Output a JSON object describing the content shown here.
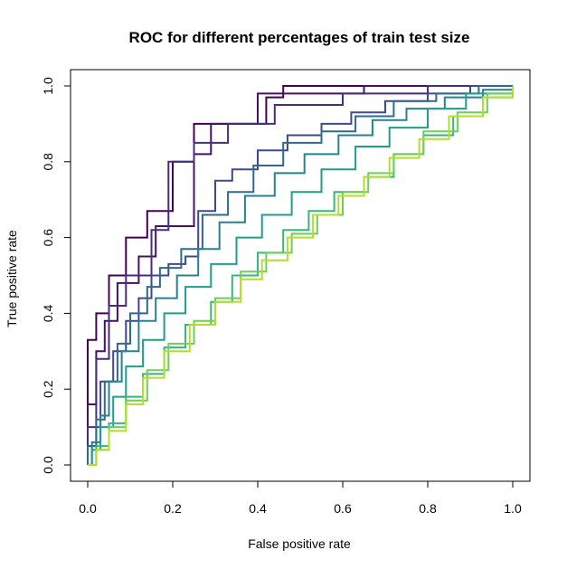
{
  "chart_data": {
    "type": "line",
    "title": "ROC for different percentages of train test size",
    "xlabel": "False positive rate",
    "ylabel": "True positive rate",
    "xlim": [
      0,
      1
    ],
    "ylim": [
      0,
      1
    ],
    "xticks": [
      "0.0",
      "0.2",
      "0.4",
      "0.6",
      "0.8",
      "1.0"
    ],
    "yticks": [
      "0.0",
      "0.2",
      "0.4",
      "0.6",
      "0.8",
      "1.0"
    ],
    "legend": "none",
    "grid": false,
    "series": [
      {
        "color": "#440154",
        "step": true,
        "points": [
          [
            0,
            0
          ],
          [
            0,
            0.33
          ],
          [
            0.02,
            0.33
          ],
          [
            0.02,
            0.4
          ],
          [
            0.05,
            0.4
          ],
          [
            0.05,
            0.5
          ],
          [
            0.09,
            0.5
          ],
          [
            0.09,
            0.6
          ],
          [
            0.14,
            0.6
          ],
          [
            0.14,
            0.67
          ],
          [
            0.2,
            0.67
          ],
          [
            0.2,
            0.8
          ],
          [
            0.25,
            0.8
          ],
          [
            0.25,
            0.9
          ],
          [
            0.42,
            0.9
          ],
          [
            0.42,
            0.97
          ],
          [
            0.46,
            0.97
          ],
          [
            0.46,
            1.0
          ],
          [
            1,
            1
          ]
        ]
      },
      {
        "color": "#471063",
        "step": true,
        "points": [
          [
            0,
            0
          ],
          [
            0,
            0.16
          ],
          [
            0.02,
            0.16
          ],
          [
            0.02,
            0.3
          ],
          [
            0.04,
            0.3
          ],
          [
            0.04,
            0.38
          ],
          [
            0.07,
            0.38
          ],
          [
            0.07,
            0.48
          ],
          [
            0.12,
            0.48
          ],
          [
            0.12,
            0.55
          ],
          [
            0.16,
            0.55
          ],
          [
            0.16,
            0.63
          ],
          [
            0.25,
            0.63
          ],
          [
            0.25,
            0.82
          ],
          [
            0.29,
            0.82
          ],
          [
            0.29,
            0.9
          ],
          [
            0.4,
            0.9
          ],
          [
            0.4,
            0.98
          ],
          [
            0.65,
            0.98
          ],
          [
            0.65,
            1.0
          ],
          [
            1,
            1
          ]
        ]
      },
      {
        "color": "#472d7b",
        "step": true,
        "points": [
          [
            0,
            0
          ],
          [
            0,
            0.1
          ],
          [
            0.02,
            0.1
          ],
          [
            0.02,
            0.28
          ],
          [
            0.05,
            0.28
          ],
          [
            0.05,
            0.42
          ],
          [
            0.09,
            0.42
          ],
          [
            0.09,
            0.5
          ],
          [
            0.15,
            0.5
          ],
          [
            0.15,
            0.62
          ],
          [
            0.19,
            0.62
          ],
          [
            0.19,
            0.8
          ],
          [
            0.25,
            0.8
          ],
          [
            0.25,
            0.85
          ],
          [
            0.33,
            0.85
          ],
          [
            0.33,
            0.9
          ],
          [
            0.44,
            0.9
          ],
          [
            0.44,
            0.95
          ],
          [
            0.6,
            0.95
          ],
          [
            0.6,
            0.98
          ],
          [
            0.8,
            0.98
          ],
          [
            0.8,
            1.0
          ],
          [
            1,
            1
          ]
        ]
      },
      {
        "color": "#3e4989",
        "step": true,
        "points": [
          [
            0,
            0
          ],
          [
            0,
            0.05
          ],
          [
            0.02,
            0.1
          ],
          [
            0.03,
            0.22
          ],
          [
            0.06,
            0.3
          ],
          [
            0.09,
            0.38
          ],
          [
            0.12,
            0.44
          ],
          [
            0.15,
            0.5
          ],
          [
            0.19,
            0.53
          ],
          [
            0.23,
            0.55
          ],
          [
            0.26,
            0.67
          ],
          [
            0.3,
            0.75
          ],
          [
            0.34,
            0.78
          ],
          [
            0.4,
            0.83
          ],
          [
            0.47,
            0.87
          ],
          [
            0.55,
            0.9
          ],
          [
            0.62,
            0.93
          ],
          [
            0.7,
            0.96
          ],
          [
            0.8,
            0.98
          ],
          [
            0.9,
            1.0
          ],
          [
            1,
            1
          ]
        ]
      },
      {
        "color": "#31688e",
        "step": true,
        "points": [
          [
            0,
            0
          ],
          [
            0,
            0.05
          ],
          [
            0.02,
            0.12
          ],
          [
            0.04,
            0.22
          ],
          [
            0.07,
            0.32
          ],
          [
            0.1,
            0.4
          ],
          [
            0.14,
            0.47
          ],
          [
            0.17,
            0.52
          ],
          [
            0.22,
            0.57
          ],
          [
            0.27,
            0.66
          ],
          [
            0.33,
            0.72
          ],
          [
            0.39,
            0.79
          ],
          [
            0.46,
            0.85
          ],
          [
            0.55,
            0.88
          ],
          [
            0.63,
            0.92
          ],
          [
            0.72,
            0.96
          ],
          [
            0.82,
            0.98
          ],
          [
            0.92,
            1.0
          ],
          [
            1,
            1
          ]
        ]
      },
      {
        "color": "#26828e",
        "step": true,
        "points": [
          [
            0,
            0
          ],
          [
            0.01,
            0.06
          ],
          [
            0.03,
            0.13
          ],
          [
            0.05,
            0.22
          ],
          [
            0.08,
            0.3
          ],
          [
            0.12,
            0.38
          ],
          [
            0.16,
            0.44
          ],
          [
            0.21,
            0.5
          ],
          [
            0.26,
            0.57
          ],
          [
            0.31,
            0.64
          ],
          [
            0.37,
            0.71
          ],
          [
            0.44,
            0.77
          ],
          [
            0.51,
            0.82
          ],
          [
            0.59,
            0.87
          ],
          [
            0.67,
            0.91
          ],
          [
            0.75,
            0.94
          ],
          [
            0.84,
            0.97
          ],
          [
            0.93,
            0.99
          ],
          [
            1,
            1
          ]
        ]
      },
      {
        "color": "#1f9e89",
        "step": true,
        "points": [
          [
            0,
            0
          ],
          [
            0.01,
            0.04
          ],
          [
            0.03,
            0.1
          ],
          [
            0.06,
            0.18
          ],
          [
            0.09,
            0.26
          ],
          [
            0.13,
            0.33
          ],
          [
            0.18,
            0.4
          ],
          [
            0.23,
            0.47
          ],
          [
            0.29,
            0.53
          ],
          [
            0.35,
            0.6
          ],
          [
            0.41,
            0.66
          ],
          [
            0.48,
            0.72
          ],
          [
            0.55,
            0.78
          ],
          [
            0.63,
            0.84
          ],
          [
            0.71,
            0.89
          ],
          [
            0.8,
            0.94
          ],
          [
            0.89,
            0.98
          ],
          [
            1,
            1
          ]
        ]
      },
      {
        "color": "#35b779",
        "step": true,
        "points": [
          [
            0,
            0
          ],
          [
            0.02,
            0.05
          ],
          [
            0.05,
            0.11
          ],
          [
            0.09,
            0.18
          ],
          [
            0.13,
            0.24
          ],
          [
            0.18,
            0.31
          ],
          [
            0.23,
            0.37
          ],
          [
            0.29,
            0.43
          ],
          [
            0.34,
            0.5
          ],
          [
            0.4,
            0.56
          ],
          [
            0.46,
            0.62
          ],
          [
            0.52,
            0.67
          ],
          [
            0.58,
            0.72
          ],
          [
            0.65,
            0.76
          ],
          [
            0.72,
            0.82
          ],
          [
            0.79,
            0.87
          ],
          [
            0.86,
            0.92
          ],
          [
            0.93,
            0.97
          ],
          [
            1,
            1
          ]
        ]
      },
      {
        "color": "#6ece58",
        "step": true,
        "points": [
          [
            0,
            0
          ],
          [
            0.02,
            0.04
          ],
          [
            0.05,
            0.1
          ],
          [
            0.09,
            0.17
          ],
          [
            0.14,
            0.25
          ],
          [
            0.19,
            0.32
          ],
          [
            0.25,
            0.38
          ],
          [
            0.3,
            0.44
          ],
          [
            0.36,
            0.51
          ],
          [
            0.42,
            0.56
          ],
          [
            0.48,
            0.61
          ],
          [
            0.54,
            0.66
          ],
          [
            0.6,
            0.72
          ],
          [
            0.66,
            0.77
          ],
          [
            0.72,
            0.82
          ],
          [
            0.79,
            0.88
          ],
          [
            0.87,
            0.93
          ],
          [
            0.94,
            0.98
          ],
          [
            1,
            1
          ]
        ]
      },
      {
        "color": "#b5de2b",
        "step": true,
        "points": [
          [
            0,
            0
          ],
          [
            0.02,
            0.04
          ],
          [
            0.05,
            0.09
          ],
          [
            0.09,
            0.16
          ],
          [
            0.13,
            0.23
          ],
          [
            0.18,
            0.3
          ],
          [
            0.24,
            0.37
          ],
          [
            0.3,
            0.43
          ],
          [
            0.36,
            0.49
          ],
          [
            0.41,
            0.54
          ],
          [
            0.47,
            0.6
          ],
          [
            0.53,
            0.66
          ],
          [
            0.59,
            0.71
          ],
          [
            0.65,
            0.76
          ],
          [
            0.71,
            0.81
          ],
          [
            0.78,
            0.86
          ],
          [
            0.85,
            0.92
          ],
          [
            0.93,
            0.97
          ],
          [
            1,
            1
          ]
        ]
      }
    ]
  }
}
